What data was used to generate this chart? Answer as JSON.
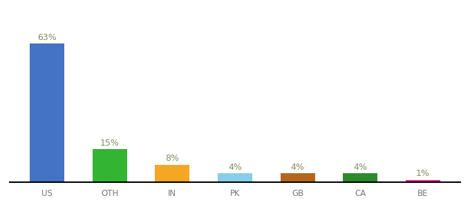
{
  "categories": [
    "US",
    "OTH",
    "IN",
    "PK",
    "GB",
    "CA",
    "BE"
  ],
  "values": [
    63,
    15,
    8,
    4,
    4,
    4,
    1
  ],
  "bar_colors": [
    "#4472c4",
    "#33b533",
    "#f5a623",
    "#87ceeb",
    "#b5651d",
    "#2d8a2d",
    "#e91e8c"
  ],
  "labels": [
    "63%",
    "15%",
    "8%",
    "4%",
    "4%",
    "4%",
    "1%"
  ],
  "background_color": "#ffffff",
  "ylim": [
    0,
    80
  ],
  "bar_width": 0.55,
  "label_fontsize": 9,
  "tick_fontsize": 8.5,
  "label_color": "#888866"
}
